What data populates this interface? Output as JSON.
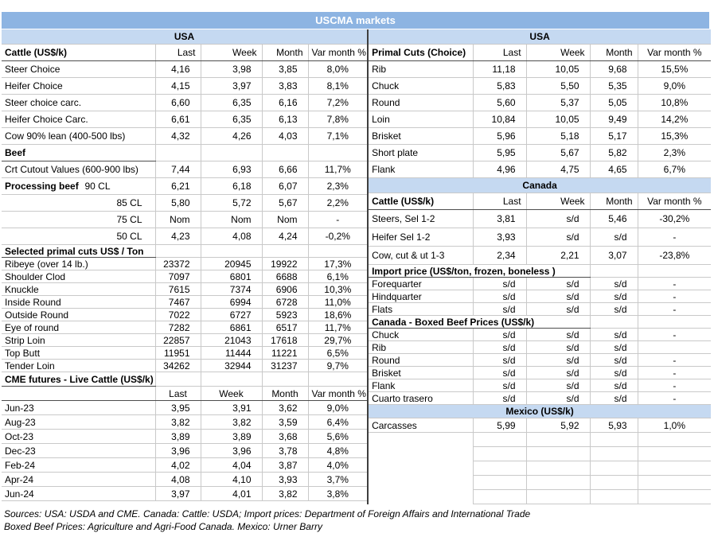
{
  "title": "USCMA markets",
  "colors": {
    "title_bar": "#8db4e2",
    "band": "#c5d9f1"
  },
  "columns": [
    "Last",
    "Week",
    "Month",
    "Var month %"
  ],
  "left_table": {
    "rows": [
      {
        "t": "band",
        "l": "USA",
        "cls": "band"
      },
      {
        "t": "head",
        "l": "Cattle (US$/k)",
        "bold": true,
        "v": [
          "Last",
          "Week",
          "Month",
          "Var month %"
        ],
        "cls": "a"
      },
      {
        "t": "row",
        "l": "Steer Choice",
        "v": [
          "4,16",
          "3,98",
          "3,85",
          "8,0%"
        ],
        "cls": "a"
      },
      {
        "t": "row",
        "l": "Heifer Choice",
        "v": [
          "4,15",
          "3,97",
          "3,83",
          "8,1%"
        ],
        "cls": "a"
      },
      {
        "t": "row",
        "l": "Steer choice carc.",
        "v": [
          "6,60",
          "6,35",
          "6,16",
          "7,2%"
        ],
        "cls": "a"
      },
      {
        "t": "row",
        "l": "Heifer Choice Carc.",
        "v": [
          "6,61",
          "6,35",
          "6,13",
          "7,8%"
        ],
        "cls": "a"
      },
      {
        "t": "row",
        "l": "Cow 90% lean (400-500 lbs)",
        "v": [
          "4,32",
          "4,26",
          "4,03",
          "7,1%"
        ],
        "cls": "a"
      },
      {
        "t": "sec",
        "l": "Beef",
        "span": 1,
        "cls": "a"
      },
      {
        "t": "row",
        "l": "Crt Cutout Values (600-900 lbs)",
        "v": [
          "7,44",
          "6,93",
          "6,66",
          "11,7%"
        ],
        "cls": "a"
      },
      {
        "t": "split",
        "l": "Processing beef",
        "l2": "90 CL",
        "v": [
          "6,21",
          "6,18",
          "6,07",
          "2,3%"
        ],
        "cls": "a"
      },
      {
        "t": "row",
        "l": "85 CL",
        "align": "r",
        "v": [
          "5,80",
          "5,72",
          "5,67",
          "2,2%"
        ],
        "cls": "a"
      },
      {
        "t": "row",
        "l": "75 CL",
        "align": "r",
        "v": [
          "Nom",
          "Nom",
          "Nom",
          "-"
        ],
        "cls": "a"
      },
      {
        "t": "row",
        "l": "50 CL",
        "align": "r",
        "v": [
          "4,23",
          "4,08",
          "4,24",
          "-0,2%"
        ],
        "cls": "a"
      },
      {
        "t": "sec",
        "l": "Selected primal cuts US$ / Ton",
        "span": 1,
        "cls": "b"
      },
      {
        "t": "row",
        "l": "Ribeye (over 14 lb.)",
        "v": [
          "23372",
          "20945",
          "19922",
          "17,3%"
        ],
        "cls": "b"
      },
      {
        "t": "row",
        "l": "Shoulder Clod",
        "v": [
          "7097",
          "6801",
          "6688",
          "6,1%"
        ],
        "cls": "b"
      },
      {
        "t": "row",
        "l": "Knuckle",
        "v": [
          "7615",
          "7374",
          "6906",
          "10,3%"
        ],
        "cls": "b"
      },
      {
        "t": "row",
        "l": "Inside Round",
        "v": [
          "7467",
          "6994",
          "6728",
          "11,0%"
        ],
        "cls": "b"
      },
      {
        "t": "row",
        "l": "Outside Round",
        "v": [
          "7022",
          "6727",
          "5923",
          "18,6%"
        ],
        "cls": "b"
      },
      {
        "t": "row",
        "l": "Eye of round",
        "v": [
          "7282",
          "6861",
          "6517",
          "11,7%"
        ],
        "cls": "b"
      },
      {
        "t": "row",
        "l": "Strip Loin",
        "v": [
          "22857",
          "21043",
          "17618",
          "29,7%"
        ],
        "cls": "b"
      },
      {
        "t": "row",
        "l": "Top Butt",
        "v": [
          "11951",
          "11444",
          "11221",
          "6,5%"
        ],
        "cls": "b"
      },
      {
        "t": "row",
        "l": "Tender Loin",
        "v": [
          "34262",
          "32944",
          "31237",
          "9,7%"
        ],
        "cls": "b"
      },
      {
        "t": "sec",
        "l": "CME futures - Live Cattle (US$/k)",
        "span": 1,
        "cls": "c"
      },
      {
        "t": "head",
        "l": "",
        "v": [
          "Last",
          "Week",
          "Month",
          "Var month %"
        ],
        "center": true,
        "cls": "c"
      },
      {
        "t": "row",
        "l": "Jun-23",
        "v": [
          "3,95",
          "3,91",
          "3,62",
          "9,0%"
        ],
        "cls": "c"
      },
      {
        "t": "row",
        "l": "Aug-23",
        "v": [
          "3,82",
          "3,82",
          "3,59",
          "6,4%"
        ],
        "cls": "c"
      },
      {
        "t": "row",
        "l": "Oct-23",
        "v": [
          "3,89",
          "3,89",
          "3,68",
          "5,6%"
        ],
        "cls": "c"
      },
      {
        "t": "row",
        "l": "Dec-23",
        "v": [
          "3,96",
          "3,96",
          "3,78",
          "4,8%"
        ],
        "cls": "c"
      },
      {
        "t": "row",
        "l": "Feb-24",
        "v": [
          "4,02",
          "4,04",
          "3,87",
          "4,0%"
        ],
        "cls": "c"
      },
      {
        "t": "row",
        "l": "Apr-24",
        "v": [
          "4,08",
          "4,10",
          "3,93",
          "3,7%"
        ],
        "cls": "c"
      },
      {
        "t": "row",
        "l": "Jun-24",
        "v": [
          "3,97",
          "4,01",
          "3,82",
          "3,8%"
        ],
        "cls": "c"
      }
    ]
  },
  "right_table": {
    "rows": [
      {
        "t": "band",
        "l": "USA",
        "cls": "band"
      },
      {
        "t": "head",
        "l": "Primal Cuts (Choice)",
        "bold": true,
        "v": [
          "Last",
          "Week",
          "Month",
          "Var month %"
        ],
        "cls": "a"
      },
      {
        "t": "row",
        "l": "Rib",
        "v": [
          "11,18",
          "10,05",
          "9,68",
          "15,5%"
        ],
        "cls": "a"
      },
      {
        "t": "row",
        "l": "Chuck",
        "v": [
          "5,83",
          "5,50",
          "5,35",
          "9,0%"
        ],
        "cls": "a"
      },
      {
        "t": "row",
        "l": "Round",
        "v": [
          "5,60",
          "5,37",
          "5,05",
          "10,8%"
        ],
        "cls": "a"
      },
      {
        "t": "row",
        "l": "Loin",
        "v": [
          "10,84",
          "10,05",
          "9,49",
          "14,2%"
        ],
        "cls": "a"
      },
      {
        "t": "row",
        "l": "Brisket",
        "v": [
          "5,96",
          "5,18",
          "5,17",
          "15,3%"
        ],
        "cls": "a"
      },
      {
        "t": "row",
        "l": "Short plate",
        "v": [
          "5,95",
          "5,67",
          "5,82",
          "2,3%"
        ],
        "cls": "a"
      },
      {
        "t": "row",
        "l": "Flank",
        "v": [
          "4,96",
          "4,75",
          "4,65",
          "6,7%"
        ],
        "cls": "a"
      },
      {
        "t": "band",
        "l": "Canada",
        "cls": "band"
      },
      {
        "t": "head",
        "l": "Cattle (US$/k)",
        "bold": true,
        "v": [
          "Last",
          "Week",
          "Month",
          "Var month %"
        ],
        "cls": "a"
      },
      {
        "t": "row",
        "l": "Steers, Sel 1-2",
        "v": [
          "3,81",
          "s/d",
          "5,46",
          "-30,2%"
        ],
        "cls": "d"
      },
      {
        "t": "row",
        "l": "Heifer Sel 1-2",
        "v": [
          "3,93",
          "s/d",
          "s/d",
          "-"
        ],
        "cls": "d"
      },
      {
        "t": "row",
        "l": "Cow, cut & ut 1-3",
        "v": [
          "2,34",
          "2,21",
          "3,07",
          "-23,8%"
        ],
        "cls": "d"
      },
      {
        "t": "sec",
        "l": "Import price (US$/ton, frozen, boneless )",
        "span": 3,
        "cls": "b"
      },
      {
        "t": "row",
        "l": "Forequarter",
        "v": [
          "s/d",
          "s/d",
          "s/d",
          "-"
        ],
        "cls": "b"
      },
      {
        "t": "row",
        "l": "Hindquarter",
        "v": [
          "s/d",
          "s/d",
          "s/d",
          "-"
        ],
        "cls": "b"
      },
      {
        "t": "row",
        "l": "Flats",
        "v": [
          "s/d",
          "s/d",
          "s/d",
          "-"
        ],
        "cls": "b"
      },
      {
        "t": "sec",
        "l": "Canada - Boxed Beef Prices (US$/k)",
        "span": 3,
        "cls": "b"
      },
      {
        "t": "row",
        "l": "Chuck",
        "v": [
          "s/d",
          "s/d",
          "s/d",
          "-"
        ],
        "cls": "b"
      },
      {
        "t": "row",
        "l": "Rib",
        "v": [
          "s/d",
          "s/d",
          "s/d",
          ""
        ],
        "cls": "b"
      },
      {
        "t": "row",
        "l": "Round",
        "v": [
          "s/d",
          "s/d",
          "s/d",
          "-"
        ],
        "cls": "b"
      },
      {
        "t": "row",
        "l": "Brisket",
        "v": [
          "s/d",
          "s/d",
          "s/d",
          "-"
        ],
        "cls": "b"
      },
      {
        "t": "row",
        "l": "Flank",
        "v": [
          "s/d",
          "s/d",
          "s/d",
          "-"
        ],
        "cls": "b"
      },
      {
        "t": "row",
        "l": "Cuarto trasero",
        "v": [
          "s/d",
          "s/d",
          "s/d",
          "-"
        ],
        "cls": "b"
      },
      {
        "t": "band",
        "l": "Mexico (US$/k)",
        "cls": "bandsm"
      },
      {
        "t": "row",
        "l": "Carcasses",
        "v": [
          "5,99",
          "5,92",
          "5,93",
          "1,0%"
        ],
        "cls": "c"
      },
      {
        "t": "empty",
        "cls": "c"
      },
      {
        "t": "empty",
        "cls": "c"
      },
      {
        "t": "empty",
        "cls": "c"
      },
      {
        "t": "empty",
        "cls": "c"
      },
      {
        "t": "empty",
        "cls": "c"
      }
    ]
  },
  "footer": {
    "line1": "Sources: USA: USDA and CME. Canada: Cattle: USDA; Import prices: Department of Foreign Affairs and International Trade",
    "line2": "Boxed Beef Prices: Agriculture and Agri-Food Canada. Mexico: Urner Barry"
  }
}
